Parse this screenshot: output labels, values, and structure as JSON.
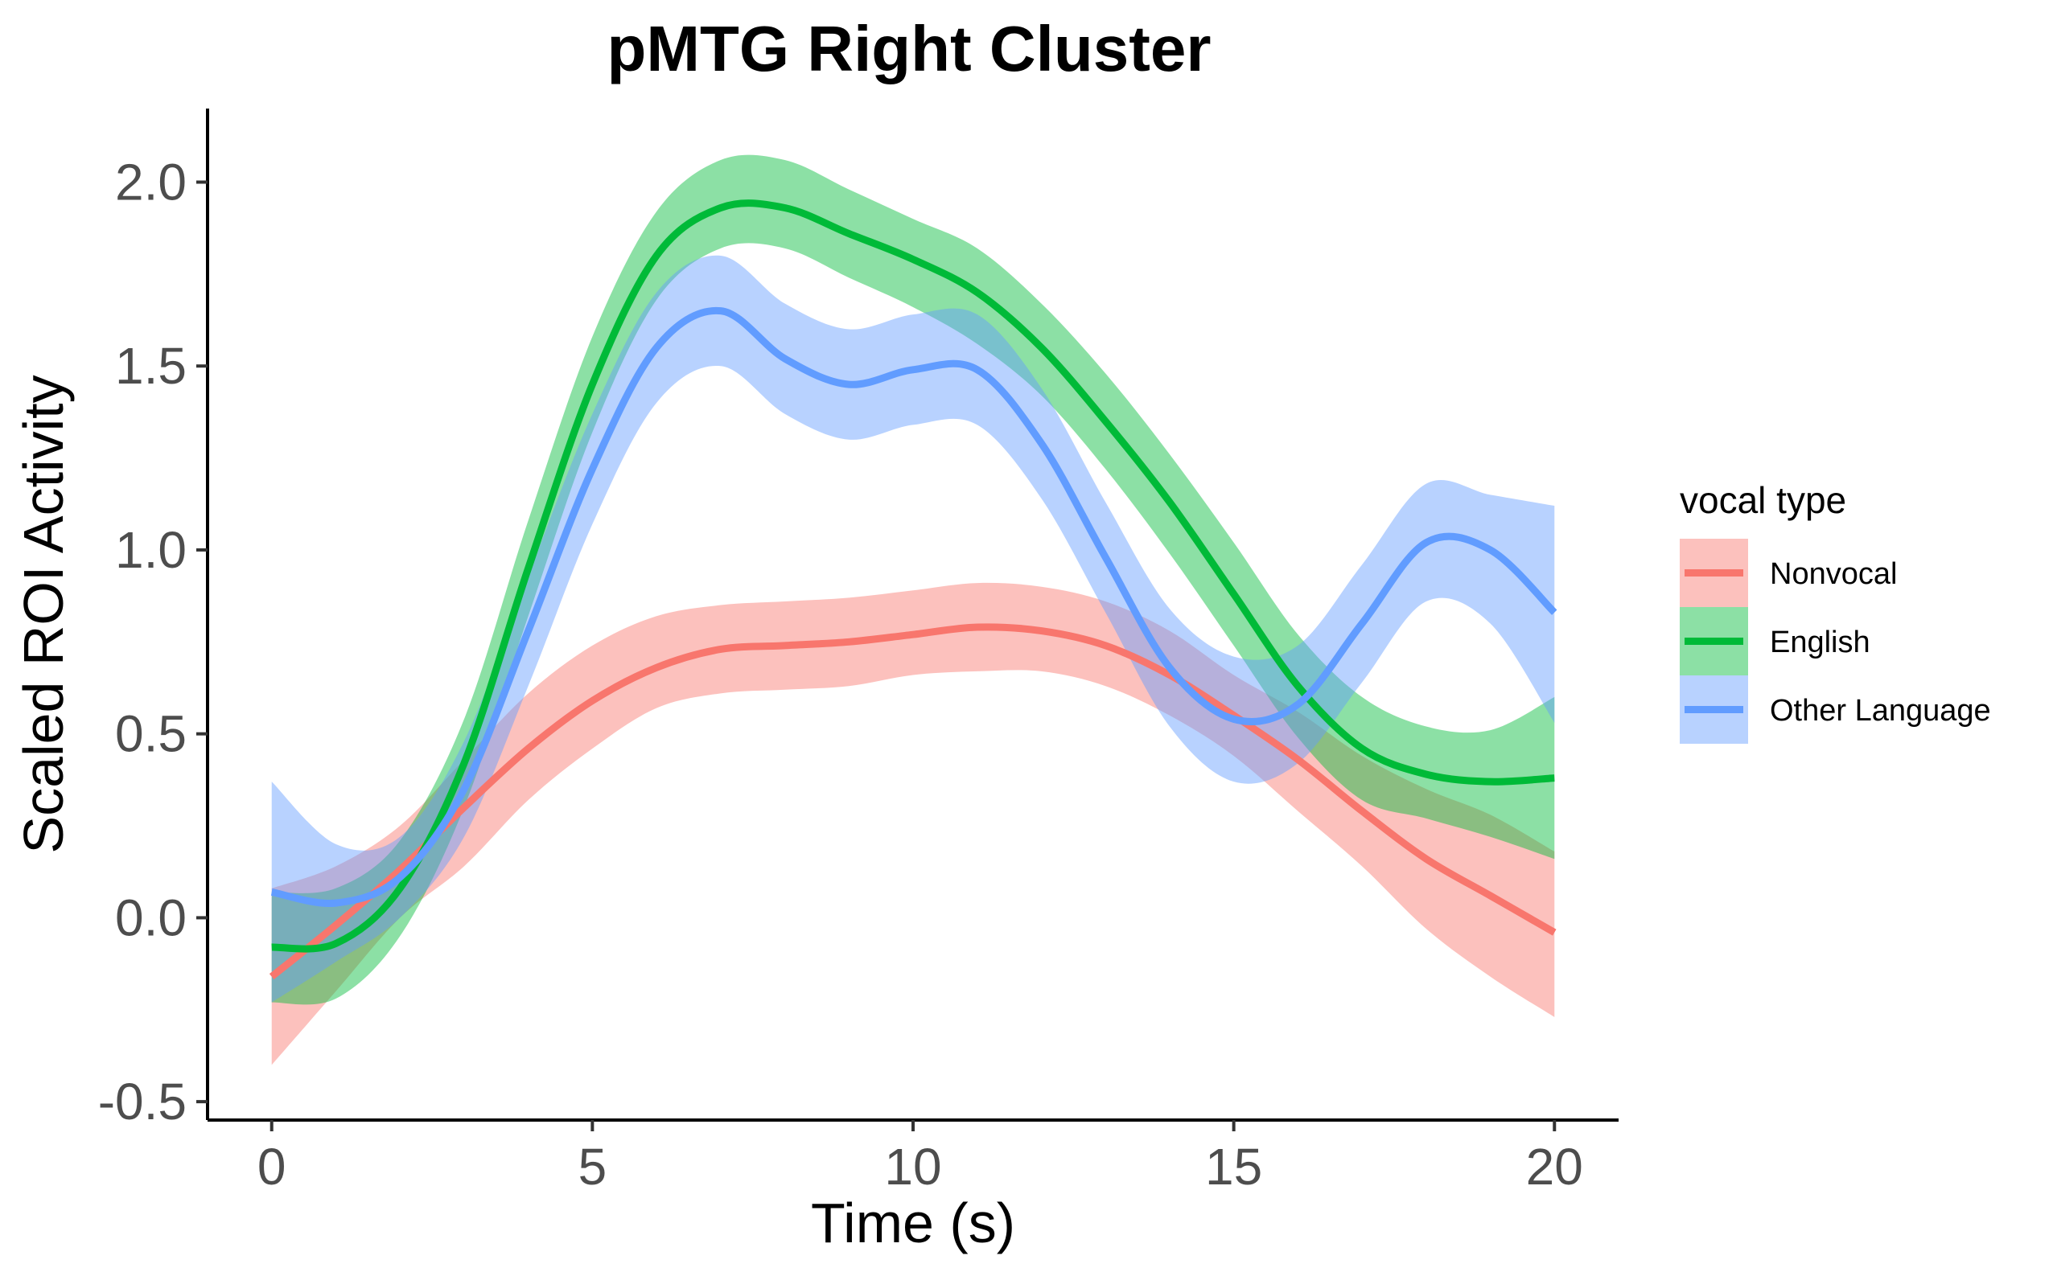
{
  "chart_data": {
    "type": "line",
    "title": "pMTG Right Cluster",
    "xlabel": "Time (s)",
    "ylabel": "Scaled ROI Activity",
    "xlim": [
      -1,
      21
    ],
    "ylim": [
      -0.55,
      2.2
    ],
    "x_ticks": [
      0,
      5,
      10,
      15,
      20
    ],
    "x_tick_labels": [
      "0",
      "5",
      "10",
      "15",
      "20"
    ],
    "y_ticks": [
      -0.5,
      0.0,
      0.5,
      1.0,
      1.5,
      2.0
    ],
    "y_tick_labels": [
      "-0.5",
      "0.0",
      "0.5",
      "1.0",
      "1.5",
      "2.0"
    ],
    "grid": false,
    "legend": {
      "title": "vocal type",
      "position": "right"
    },
    "x": [
      0,
      1,
      2,
      3,
      4,
      5,
      6,
      7,
      8,
      9,
      10,
      11,
      12,
      13,
      14,
      15,
      16,
      17,
      18,
      19,
      20
    ],
    "series": [
      {
        "name": "Nonvocal",
        "color": "#F8766D",
        "values": [
          -0.16,
          -0.02,
          0.13,
          0.3,
          0.46,
          0.59,
          0.68,
          0.73,
          0.74,
          0.75,
          0.77,
          0.79,
          0.78,
          0.74,
          0.66,
          0.55,
          0.43,
          0.29,
          0.16,
          0.06,
          -0.04
        ],
        "lower": [
          -0.4,
          -0.2,
          0.0,
          0.14,
          0.32,
          0.46,
          0.57,
          0.61,
          0.62,
          0.63,
          0.66,
          0.67,
          0.67,
          0.63,
          0.55,
          0.44,
          0.29,
          0.14,
          -0.03,
          -0.16,
          -0.27
        ],
        "upper": [
          0.08,
          0.14,
          0.25,
          0.43,
          0.61,
          0.74,
          0.82,
          0.85,
          0.86,
          0.87,
          0.89,
          0.91,
          0.9,
          0.86,
          0.78,
          0.66,
          0.56,
          0.44,
          0.35,
          0.28,
          0.18
        ]
      },
      {
        "name": "English",
        "color": "#00BA38",
        "values": [
          -0.08,
          -0.07,
          0.08,
          0.42,
          0.95,
          1.45,
          1.8,
          1.93,
          1.93,
          1.86,
          1.79,
          1.7,
          1.55,
          1.35,
          1.13,
          0.88,
          0.63,
          0.46,
          0.39,
          0.37,
          0.38
        ],
        "lower": [
          -0.23,
          -0.22,
          -0.05,
          0.3,
          0.82,
          1.32,
          1.68,
          1.82,
          1.82,
          1.74,
          1.66,
          1.56,
          1.42,
          1.22,
          0.99,
          0.74,
          0.49,
          0.32,
          0.27,
          0.22,
          0.16
        ],
        "upper": [
          0.07,
          0.08,
          0.21,
          0.54,
          1.08,
          1.58,
          1.92,
          2.06,
          2.06,
          1.98,
          1.9,
          1.82,
          1.67,
          1.48,
          1.26,
          1.02,
          0.77,
          0.6,
          0.52,
          0.51,
          0.6
        ]
      },
      {
        "name": "Other Language",
        "color": "#619CFF",
        "values": [
          0.07,
          0.04,
          0.11,
          0.35,
          0.78,
          1.22,
          1.55,
          1.65,
          1.52,
          1.45,
          1.49,
          1.49,
          1.29,
          0.98,
          0.68,
          0.54,
          0.58,
          0.8,
          1.02,
          1.0,
          0.83
        ],
        "lower": [
          -0.23,
          -0.12,
          0.0,
          0.22,
          0.63,
          1.07,
          1.4,
          1.5,
          1.37,
          1.3,
          1.34,
          1.34,
          1.14,
          0.83,
          0.52,
          0.37,
          0.42,
          0.64,
          0.86,
          0.8,
          0.53
        ],
        "upper": [
          0.37,
          0.2,
          0.22,
          0.48,
          0.93,
          1.37,
          1.7,
          1.8,
          1.67,
          1.6,
          1.64,
          1.64,
          1.44,
          1.13,
          0.84,
          0.71,
          0.74,
          0.96,
          1.18,
          1.15,
          1.12
        ]
      }
    ]
  }
}
